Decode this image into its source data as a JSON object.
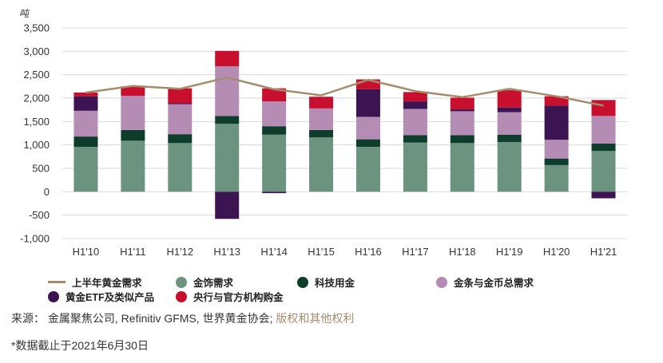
{
  "chart_data": {
    "type": "bar",
    "stacked": true,
    "ylabel": "吨",
    "ylim": [
      -1000,
      3500
    ],
    "yticks": [
      -1000,
      -500,
      0,
      500,
      1000,
      1500,
      2000,
      2500,
      3000,
      3500
    ],
    "ytick_labels": [
      "-1,000",
      "-500",
      "0",
      "500",
      "1,000",
      "1,500",
      "2,000",
      "2,500",
      "3,000",
      "3,500"
    ],
    "grid": true,
    "categories": [
      "H1'10",
      "H1'11",
      "H1'12",
      "H1'13",
      "H1'14",
      "H1'15",
      "H1'16",
      "H1'17",
      "H1'18",
      "H1'19",
      "H1'20",
      "H1'21"
    ],
    "series": [
      {
        "name": "金饰需求",
        "color": "#6b9380",
        "values": [
          960,
          1090,
          1040,
          1450,
          1220,
          1160,
          960,
          1050,
          1040,
          1060,
          570,
          870
        ]
      },
      {
        "name": "科技用金",
        "color": "#0e3d2c",
        "values": [
          220,
          230,
          190,
          170,
          180,
          160,
          160,
          160,
          170,
          160,
          140,
          160
        ]
      },
      {
        "name": "金条与金币总需求",
        "color": "#b48cb4",
        "values": [
          550,
          730,
          640,
          1060,
          530,
          460,
          480,
          560,
          510,
          480,
          400,
          590
        ]
      },
      {
        "name": "黄金ETF及类似产品",
        "color": "#3d1452",
        "values": [
          310,
          0,
          20,
          -580,
          -30,
          0,
          590,
          160,
          40,
          100,
          730,
          -140
        ]
      },
      {
        "name": "央行与官方机构购金",
        "color": "#c8102e",
        "values": [
          80,
          200,
          320,
          330,
          280,
          250,
          210,
          200,
          250,
          370,
          200,
          340
        ]
      }
    ],
    "line": {
      "name": "上半年黄金需求",
      "color": "#a38d6b",
      "values": [
        2120,
        2260,
        2200,
        2440,
        2190,
        2060,
        2390,
        2150,
        2020,
        2200,
        2040,
        1840
      ]
    }
  },
  "legend": {
    "items": [
      {
        "label": "上半年黄金需求",
        "kind": "line",
        "color": "#a38d6b"
      },
      {
        "label": "金饰需求",
        "kind": "dot",
        "color": "#6b9380"
      },
      {
        "label": "科技用金",
        "kind": "dot",
        "color": "#0e3d2c"
      },
      {
        "label": "金条与金币总需求",
        "kind": "dot",
        "color": "#b48cb4"
      },
      {
        "label": "黄金ETF及类似产品",
        "kind": "dot",
        "color": "#3d1452"
      },
      {
        "label": "央行与官方机构购金",
        "kind": "dot",
        "color": "#c8102e"
      }
    ]
  },
  "footer": {
    "source_prefix": "来源： 金属聚焦公司, Refinitiv GFMS, 世界黄金协会; ",
    "source_link": "版权和其他权利",
    "note": "*数据截止于2021年6月30日"
  }
}
